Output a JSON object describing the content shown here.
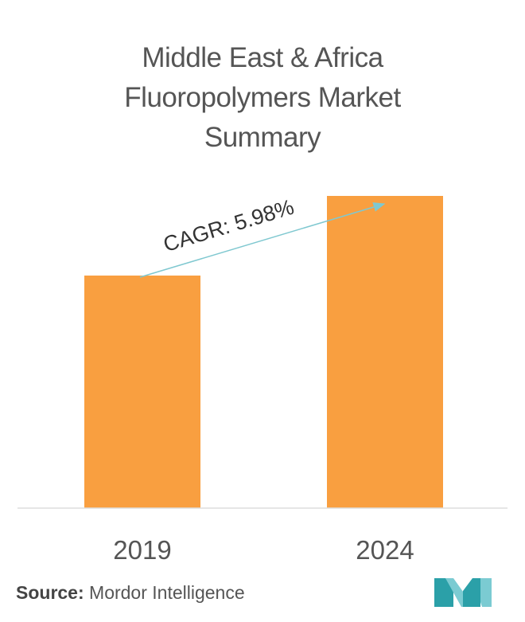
{
  "title_lines": [
    "Middle East & Africa",
    "Fluoropolymers Market",
    "Summary"
  ],
  "chart_data": {
    "type": "bar",
    "title": "Middle East & Africa Fluoropolymers Market Summary",
    "categories": [
      "2019",
      "2024"
    ],
    "values": [
      0.73,
      0.98
    ],
    "ylim": [
      0,
      1
    ],
    "bar_color": "#F99F40",
    "grid": false,
    "annotation": {
      "text": "CAGR: 5.98%",
      "arrow_color": "#7FC8D0"
    }
  },
  "source": {
    "label": "Source:",
    "name": "Mordor Intelligence"
  },
  "colors": {
    "text": "#555555",
    "axis": "#DDDDDD",
    "logo_teal": "#2BA0A8",
    "logo_light": "#7BCBD2"
  }
}
